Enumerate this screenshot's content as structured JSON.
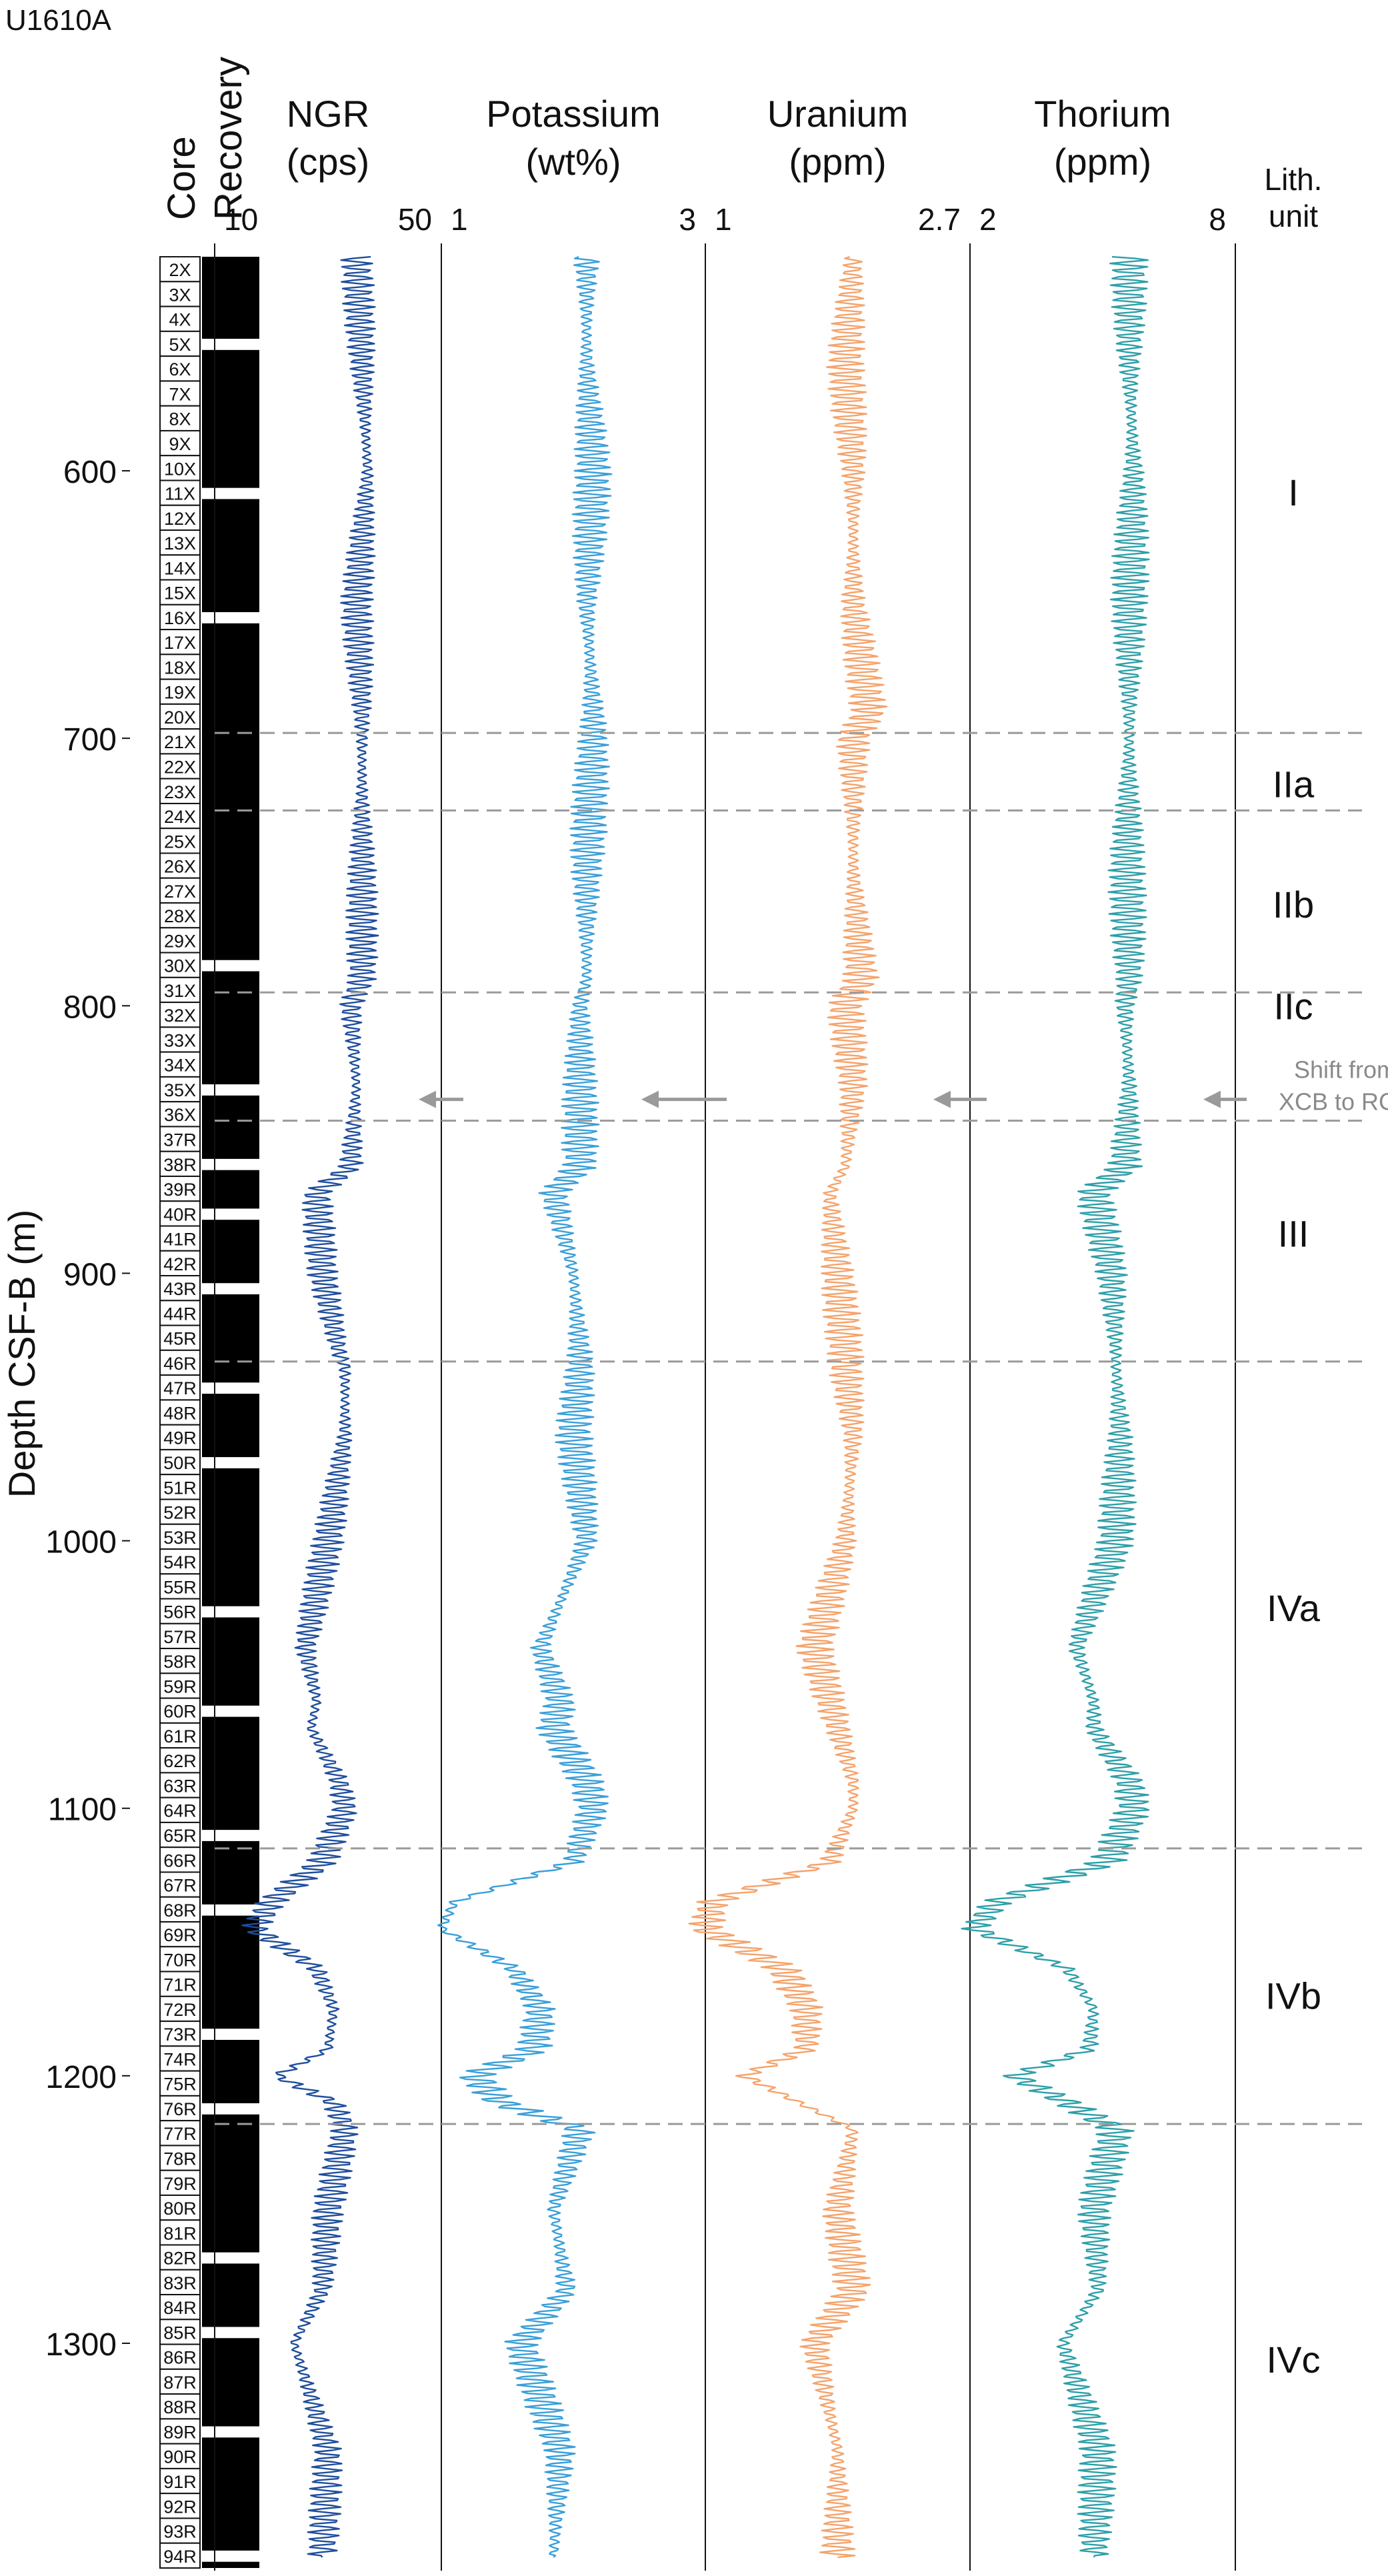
{
  "title": "U1610A",
  "y_axis": {
    "label": "Depth CSF-B (m)",
    "min": 515,
    "max": 1385,
    "ticks": [
      600,
      700,
      800,
      900,
      1000,
      1100,
      1200,
      1300
    ]
  },
  "column_headers": {
    "core": "Core",
    "recovery": "Recovery",
    "lith": [
      "Lith.",
      "unit"
    ]
  },
  "tracks": [
    {
      "key": "ngr",
      "title": "NGR",
      "unit": "(cps)",
      "min": 10,
      "max": 50,
      "min_label": "10",
      "max_label": "50",
      "color": "#1f4e9c"
    },
    {
      "key": "potassium",
      "title": "Potassium",
      "unit": "(wt%)",
      "min": 1,
      "max": 3,
      "min_label": "1",
      "max_label": "3",
      "color": "#3a9fd8"
    },
    {
      "key": "uranium",
      "title": "Uranium",
      "unit": "(ppm)",
      "min": 1,
      "max": 2.7,
      "min_label": "1",
      "max_label": "2.7",
      "color": "#f4a36c"
    },
    {
      "key": "thorium",
      "title": "Thorium",
      "unit": "(ppm)",
      "min": 2,
      "max": 8,
      "min_label": "2",
      "max_label": "8",
      "color": "#2e9fa8"
    }
  ],
  "cores": [
    "2X",
    "3X",
    "4X",
    "5X",
    "6X",
    "7X",
    "8X",
    "9X",
    "10X",
    "11X",
    "12X",
    "13X",
    "14X",
    "15X",
    "16X",
    "17X",
    "18X",
    "19X",
    "20X",
    "21X",
    "22X",
    "23X",
    "24X",
    "25X",
    "26X",
    "27X",
    "28X",
    "29X",
    "30X",
    "31X",
    "32X",
    "33X",
    "34X",
    "35X",
    "36X",
    "37R",
    "38R",
    "39R",
    "40R",
    "41R",
    "42R",
    "43R",
    "44R",
    "45R",
    "46R",
    "47R",
    "48R",
    "49R",
    "50R",
    "51R",
    "52R",
    "53R",
    "54R",
    "55R",
    "56R",
    "57R",
    "58R",
    "59R",
    "60R",
    "61R",
    "62R",
    "63R",
    "64R",
    "65R",
    "66R",
    "67R",
    "68R",
    "69R",
    "70R",
    "71R",
    "72R",
    "73R",
    "74R",
    "75R",
    "76R",
    "77R",
    "78R",
    "79R",
    "80R",
    "81R",
    "82R",
    "83R",
    "84R",
    "85R",
    "86R",
    "87R",
    "88R",
    "89R",
    "90R",
    "91R",
    "92R",
    "93R",
    "94R"
  ],
  "lith_units": [
    {
      "name": "I",
      "depth": 608
    },
    {
      "name": "IIa",
      "depth": 717
    },
    {
      "name": "IIb",
      "depth": 762
    },
    {
      "name": "IIc",
      "depth": 800
    },
    {
      "name": "III",
      "depth": 885
    },
    {
      "name": "IVa",
      "depth": 1025
    },
    {
      "name": "IVb",
      "depth": 1170
    },
    {
      "name": "IVc",
      "depth": 1306
    }
  ],
  "unit_boundaries": [
    698,
    727,
    795,
    933,
    1115,
    1218
  ],
  "annotation": {
    "lines": [
      "Shift from",
      "XCB to RCB"
    ],
    "depth": 835
  },
  "chart_data": {
    "type": "line",
    "y_variable": "Depth CSF-B (m)",
    "series": [
      {
        "name": "NGR",
        "unit": "cps",
        "depth": [
          520,
          560,
          600,
          650,
          690,
          700,
          750,
          790,
          800,
          830,
          860,
          870,
          900,
          930,
          935,
          960,
          1000,
          1040,
          1060,
          1070,
          1090,
          1100,
          1120,
          1135,
          1145,
          1160,
          1175,
          1190,
          1200,
          1210,
          1220,
          1250,
          1280,
          1300,
          1340,
          1380
        ],
        "value": [
          35,
          36,
          37,
          35,
          36,
          36,
          36,
          36,
          34,
          35,
          34,
          28,
          29,
          32,
          33,
          33,
          30,
          26,
          28,
          27,
          32,
          33,
          29,
          20,
          17,
          28,
          31,
          30,
          21,
          31,
          33,
          30,
          29,
          24,
          30,
          29
        ]
      },
      {
        "name": "Potassium",
        "unit": "wt%",
        "depth": [
          520,
          560,
          600,
          650,
          690,
          700,
          750,
          790,
          800,
          830,
          860,
          870,
          900,
          930,
          935,
          960,
          1000,
          1040,
          1060,
          1070,
          1090,
          1100,
          1120,
          1135,
          1145,
          1160,
          1175,
          1190,
          1200,
          1210,
          1220,
          1250,
          1280,
          1300,
          1340,
          1380
        ],
        "value": [
          2.1,
          2.1,
          2.15,
          2.1,
          2.15,
          2.15,
          2.1,
          2.1,
          2.05,
          2.05,
          2.05,
          1.85,
          2.0,
          2.05,
          2.05,
          2.0,
          2.1,
          1.75,
          1.9,
          1.85,
          2.1,
          2.15,
          2.0,
          1.1,
          1.0,
          1.55,
          1.75,
          1.7,
          1.25,
          1.45,
          2.05,
          1.85,
          1.95,
          1.6,
          1.9,
          1.85
        ]
      },
      {
        "name": "Uranium",
        "unit": "ppm",
        "depth": [
          520,
          560,
          600,
          650,
          690,
          700,
          750,
          790,
          800,
          830,
          860,
          870,
          900,
          930,
          935,
          960,
          1000,
          1040,
          1060,
          1070,
          1090,
          1100,
          1120,
          1135,
          1145,
          1160,
          1175,
          1190,
          1200,
          1210,
          1220,
          1250,
          1280,
          1300,
          1340,
          1380
        ],
        "value": [
          1.95,
          1.9,
          1.95,
          1.95,
          2.05,
          1.95,
          1.95,
          2.0,
          1.9,
          1.95,
          1.9,
          1.8,
          1.85,
          1.9,
          1.9,
          1.95,
          1.9,
          1.7,
          1.8,
          1.85,
          1.95,
          1.95,
          1.8,
          1.05,
          1.0,
          1.5,
          1.65,
          1.65,
          1.25,
          1.6,
          1.95,
          1.85,
          1.95,
          1.7,
          1.85,
          1.85
        ]
      },
      {
        "name": "Thorium",
        "unit": "ppm",
        "depth": [
          520,
          560,
          600,
          650,
          690,
          700,
          750,
          790,
          800,
          830,
          860,
          870,
          900,
          930,
          935,
          960,
          1000,
          1040,
          1060,
          1070,
          1090,
          1100,
          1120,
          1135,
          1145,
          1160,
          1175,
          1190,
          1200,
          1210,
          1220,
          1250,
          1280,
          1300,
          1340,
          1380
        ],
        "value": [
          5.6,
          5.6,
          5.7,
          5.6,
          5.6,
          5.6,
          5.55,
          5.6,
          5.5,
          5.6,
          5.5,
          4.8,
          5.2,
          5.3,
          5.3,
          5.4,
          5.3,
          4.4,
          4.8,
          4.8,
          5.6,
          5.7,
          5.1,
          2.6,
          2.1,
          4.2,
          4.8,
          4.7,
          3.0,
          4.2,
          5.3,
          4.8,
          4.9,
          4.1,
          4.9,
          4.8
        ]
      }
    ]
  }
}
